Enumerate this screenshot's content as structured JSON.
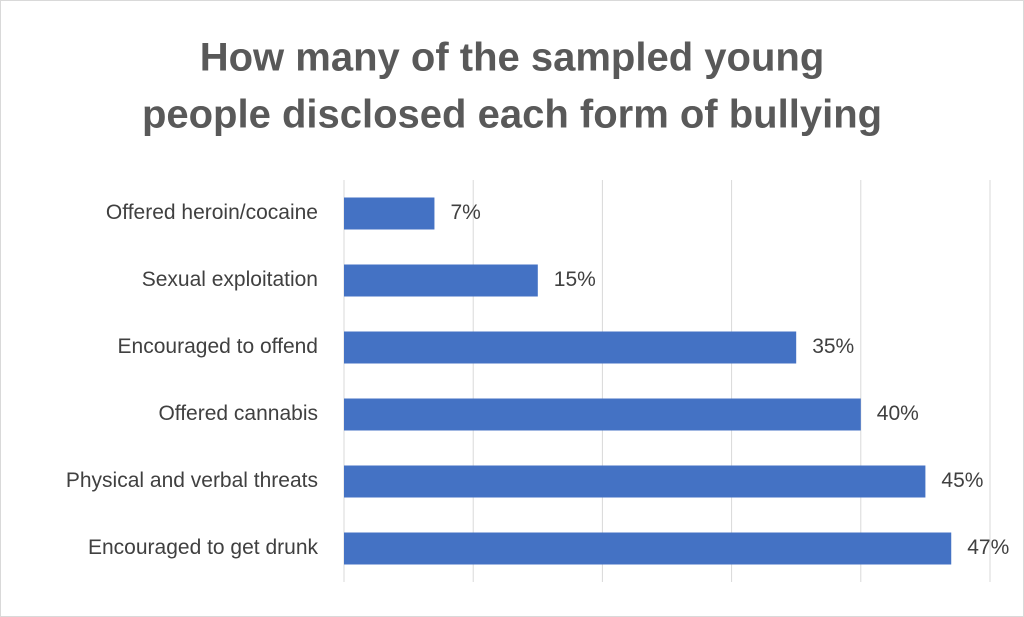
{
  "chart_data": {
    "type": "bar",
    "orientation": "horizontal",
    "title": [
      "How many of the sampled young",
      "people disclosed each form of bullying"
    ],
    "categories": [
      "Offered heroin/cocaine",
      "Sexual exploitation",
      "Encouraged to offend",
      "Offered cannabis",
      "Physical and verbal threats",
      "Encouraged to get drunk"
    ],
    "values": [
      7,
      15,
      35,
      40,
      45,
      47
    ],
    "value_labels": [
      "7%",
      "15%",
      "35%",
      "40%",
      "45%",
      "47%"
    ],
    "color": "#4472c4",
    "xlim": [
      0,
      50
    ],
    "xticks": [
      0,
      10,
      20,
      30,
      40,
      50
    ],
    "grid": true
  }
}
